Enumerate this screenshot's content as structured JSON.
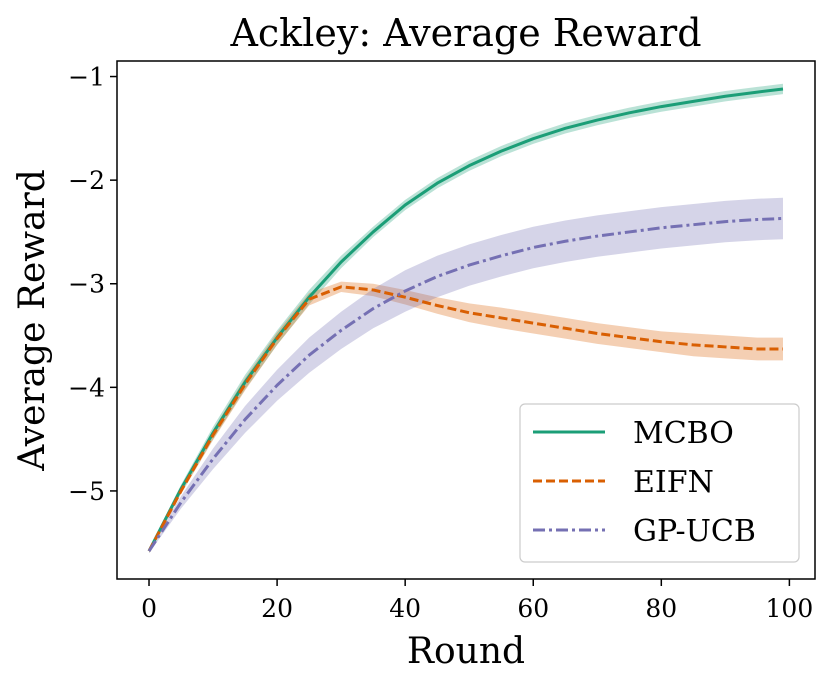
{
  "chart_data": {
    "type": "line",
    "title": "Ackley: Average Reward",
    "xlabel": "Round",
    "ylabel": "Average Reward",
    "xlim": [
      -5,
      104
    ],
    "ylim": [
      -5.85,
      -0.85
    ],
    "xticks": [
      0,
      20,
      40,
      60,
      80,
      100
    ],
    "xtick_labels": [
      "0",
      "20",
      "40",
      "60",
      "80",
      "100"
    ],
    "yticks": [
      -1,
      -2,
      -3,
      -4,
      -5
    ],
    "ytick_labels": [
      "−1",
      "−2",
      "−3",
      "−4",
      "−5"
    ],
    "legend_position": "lower-right",
    "grid": false,
    "x": [
      0,
      5,
      10,
      15,
      20,
      25,
      30,
      35,
      40,
      45,
      50,
      55,
      60,
      65,
      70,
      75,
      80,
      85,
      90,
      95,
      99
    ],
    "series": [
      {
        "name": "MCBO",
        "color": "#1b9e77",
        "style": "solid",
        "values": [
          -5.58,
          -4.98,
          -4.44,
          -3.95,
          -3.52,
          -3.13,
          -2.79,
          -2.5,
          -2.24,
          -2.03,
          -1.86,
          -1.72,
          -1.6,
          -1.5,
          -1.42,
          -1.35,
          -1.29,
          -1.24,
          -1.19,
          -1.15,
          -1.12
        ],
        "band": [
          0.02,
          0.04,
          0.06,
          0.07,
          0.07,
          0.07,
          0.06,
          0.05,
          0.05,
          0.05,
          0.05,
          0.05,
          0.05,
          0.05,
          0.05,
          0.05,
          0.05,
          0.05,
          0.05,
          0.05,
          0.05
        ]
      },
      {
        "name": "EIFN",
        "color": "#d95f02",
        "style": "dashed",
        "values": [
          -5.58,
          -5.0,
          -4.46,
          -3.97,
          -3.53,
          -3.15,
          -3.03,
          -3.06,
          -3.13,
          -3.21,
          -3.28,
          -3.33,
          -3.38,
          -3.43,
          -3.48,
          -3.52,
          -3.56,
          -3.59,
          -3.61,
          -3.63,
          -3.63
        ],
        "band": [
          0.02,
          0.03,
          0.05,
          0.06,
          0.06,
          0.06,
          0.05,
          0.06,
          0.07,
          0.08,
          0.09,
          0.1,
          0.1,
          0.1,
          0.1,
          0.1,
          0.1,
          0.11,
          0.11,
          0.11,
          0.11
        ]
      },
      {
        "name": "GP-UCB",
        "color": "#7570b3",
        "style": "dashdot",
        "values": [
          -5.58,
          -5.11,
          -4.69,
          -4.31,
          -3.98,
          -3.69,
          -3.45,
          -3.24,
          -3.07,
          -2.93,
          -2.82,
          -2.73,
          -2.65,
          -2.59,
          -2.54,
          -2.5,
          -2.46,
          -2.43,
          -2.4,
          -2.38,
          -2.37
        ],
        "band": [
          0.02,
          0.06,
          0.1,
          0.13,
          0.15,
          0.17,
          0.18,
          0.19,
          0.2,
          0.2,
          0.2,
          0.2,
          0.2,
          0.2,
          0.2,
          0.2,
          0.2,
          0.2,
          0.2,
          0.2,
          0.2
        ]
      }
    ]
  }
}
